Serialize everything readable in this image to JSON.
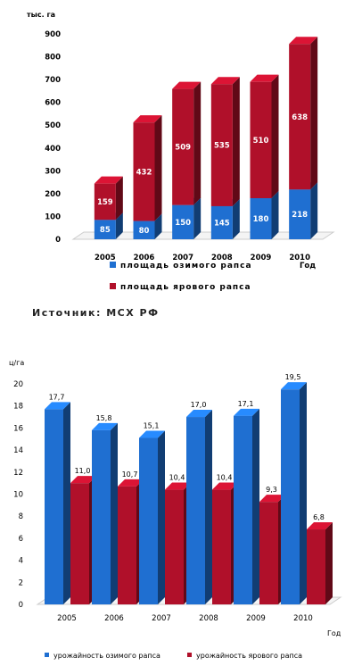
{
  "source_note": "Источник: МСХ РФ",
  "chart_data": [
    {
      "type": "bar",
      "stacked": true,
      "title": "",
      "ylabel": "тыс. га",
      "xlabel": "Год",
      "categories": [
        "2005",
        "2006",
        "2007",
        "2008",
        "2009",
        "2010"
      ],
      "yticks": [
        "0",
        "100",
        "200",
        "300",
        "400",
        "500",
        "600",
        "700",
        "800",
        "900"
      ],
      "ylim": [
        0,
        900
      ],
      "series": [
        {
          "name": "площадь озимого рапса",
          "color": "#1f6fd1",
          "values": [
            85,
            80,
            150,
            145,
            180,
            218
          ],
          "labels": [
            "85",
            "80",
            "150",
            "145",
            "180",
            "218"
          ]
        },
        {
          "name": "площадь ярового рапса",
          "color": "#b0102a",
          "values": [
            159,
            432,
            509,
            535,
            510,
            638
          ],
          "labels": [
            "159",
            "432",
            "509",
            "535",
            "510",
            "638"
          ]
        }
      ],
      "legend_position": "bottom",
      "grid": false
    },
    {
      "type": "bar",
      "stacked": false,
      "title": "",
      "ylabel": "ц/га",
      "xlabel": "Год",
      "categories": [
        "2005",
        "2006",
        "2007",
        "2008",
        "2009",
        "2010"
      ],
      "yticks": [
        "0",
        "2",
        "4",
        "6",
        "8",
        "10",
        "12",
        "14",
        "16",
        "18",
        "20"
      ],
      "ylim": [
        0,
        20
      ],
      "series": [
        {
          "name": "урожайность озимого рапса",
          "color": "#1f6fd1",
          "values": [
            17.7,
            15.8,
            15.1,
            17.0,
            17.1,
            19.5
          ],
          "labels": [
            "17,7",
            "15,8",
            "15,1",
            "17,0",
            "17,1",
            "19,5"
          ]
        },
        {
          "name": "урожайность ярового рапса",
          "color": "#b0102a",
          "values": [
            11.0,
            10.7,
            10.4,
            10.4,
            9.3,
            6.8
          ],
          "labels": [
            "11,0",
            "10,7",
            "10,4",
            "10,4",
            "9,3",
            "6,8"
          ]
        }
      ],
      "legend_position": "bottom",
      "grid": false
    }
  ]
}
